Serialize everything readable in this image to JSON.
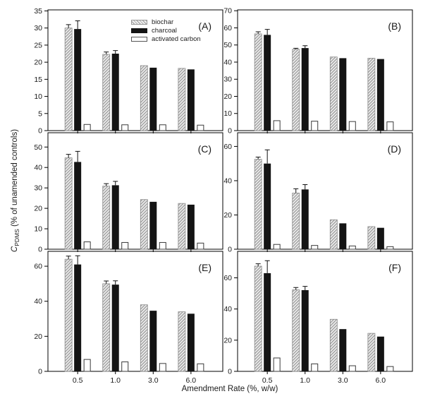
{
  "figure": {
    "xlabel": "Amendment Rate (%, w/w)",
    "ylabel": {
      "var": "C",
      "sub": "PDMS",
      "rest": " (% of unamended controls)"
    },
    "legend": [
      {
        "label": "biochar",
        "swatch": "hatched"
      },
      {
        "label": "charcoal",
        "swatch": "black"
      },
      {
        "label": "activated carbon",
        "swatch": "white"
      }
    ],
    "colors": {
      "charcoal_bar": "#141414",
      "hatch_line": "#9a9a9a",
      "hatch_bg": "#f0f0f0",
      "activated_carbon_bar": "#ffffff",
      "axis": "#000000",
      "panel_letter": "#555555"
    }
  },
  "chart_data": {
    "type": "bar",
    "grid": false,
    "legend_position": "inside panel A, top center",
    "categories": [
      "0.5",
      "1.0",
      "3.0",
      "6.0"
    ],
    "series_names": [
      "biochar",
      "charcoal",
      "activated carbon"
    ],
    "xlabel": "Amendment Rate (%, w/w)",
    "ylabel": "C_PDMS (% of unamended controls)",
    "error_bars": "upper error bars on biochar and charcoal at 0.5 and 1.0 rates",
    "panels": [
      {
        "label": "(A)",
        "ylim": [
          0,
          35.3
        ],
        "yticks": [
          0,
          5,
          10,
          15,
          20,
          25,
          30,
          35
        ],
        "series": [
          {
            "name": "biochar",
            "values": [
              30.0,
              22.3,
              19.0,
              18.2
            ],
            "errors": [
              1.0,
              0.7,
              0,
              0
            ]
          },
          {
            "name": "charcoal",
            "values": [
              29.7,
              22.5,
              18.4,
              17.9
            ],
            "errors": [
              2.4,
              0.9,
              0,
              0
            ]
          },
          {
            "name": "activated carbon",
            "values": [
              1.8,
              1.7,
              1.7,
              1.6
            ],
            "errors": [
              0,
              0,
              0,
              0
            ]
          }
        ]
      },
      {
        "label": "(B)",
        "ylim": [
          0,
          70.5
        ],
        "yticks": [
          0,
          10,
          20,
          30,
          40,
          50,
          60,
          70
        ],
        "series": [
          {
            "name": "biochar",
            "values": [
              56.5,
              47.5,
              43.0,
              42.3
            ],
            "errors": [
              1.2,
              0.6,
              0,
              0
            ]
          },
          {
            "name": "charcoal",
            "values": [
              55.9,
              48.2,
              42.3,
              41.8
            ],
            "errors": [
              3.2,
              1.4,
              0,
              0
            ]
          },
          {
            "name": "activated carbon",
            "values": [
              5.8,
              5.5,
              5.3,
              5.1
            ],
            "errors": [
              0,
              0,
              0,
              0
            ]
          }
        ]
      },
      {
        "label": "(C)",
        "ylim": [
          0,
          57
        ],
        "yticks": [
          0,
          10,
          20,
          30,
          40,
          50
        ],
        "series": [
          {
            "name": "biochar",
            "values": [
              44.7,
              30.9,
              24.3,
              22.4
            ],
            "errors": [
              1.7,
              1.2,
              0,
              0
            ]
          },
          {
            "name": "charcoal",
            "values": [
              42.7,
              31.3,
              23.2,
              21.8
            ],
            "errors": [
              5.2,
              1.9,
              0,
              0
            ]
          },
          {
            "name": "activated carbon",
            "values": [
              3.6,
              3.3,
              3.3,
              3.0
            ],
            "errors": [
              0,
              0,
              0,
              0
            ]
          }
        ]
      },
      {
        "label": "(D)",
        "ylim": [
          0,
          68
        ],
        "yticks": [
          0,
          20,
          40,
          60
        ],
        "series": [
          {
            "name": "biochar",
            "values": [
              52.5,
              32.8,
              17.2,
              13.2
            ],
            "errors": [
              1.3,
              2.5,
              0,
              0
            ]
          },
          {
            "name": "charcoal",
            "values": [
              50.0,
              34.9,
              15.1,
              12.5
            ],
            "errors": [
              8.0,
              2.8,
              0,
              0
            ]
          },
          {
            "name": "activated carbon",
            "values": [
              2.8,
              2.2,
              1.9,
              1.5
            ],
            "errors": [
              0,
              0,
              0,
              0
            ]
          }
        ]
      },
      {
        "label": "(E)",
        "ylim": [
          0,
          68.5
        ],
        "yticks": [
          0,
          20,
          40,
          60
        ],
        "series": [
          {
            "name": "biochar",
            "values": [
              64.0,
              50.0,
              38.0,
              34.0
            ],
            "errors": [
              1.8,
              1.6,
              0,
              0
            ]
          },
          {
            "name": "charcoal",
            "values": [
              61.0,
              49.5,
              34.6,
              32.9
            ],
            "errors": [
              5.0,
              2.2,
              0,
              0
            ]
          },
          {
            "name": "activated carbon",
            "values": [
              6.8,
              5.4,
              4.5,
              4.3
            ],
            "errors": [
              0,
              0,
              0,
              0
            ]
          }
        ]
      },
      {
        "label": "(F)",
        "ylim": [
          0,
          77
        ],
        "yticks": [
          0,
          20,
          40,
          60
        ],
        "series": [
          {
            "name": "biochar",
            "values": [
              67.5,
              52.3,
              33.4,
              24.4
            ],
            "errors": [
              1.5,
              1.5,
              0,
              0
            ]
          },
          {
            "name": "charcoal",
            "values": [
              63.0,
              52.1,
              27.1,
              22.3
            ],
            "errors": [
              8.0,
              2.4,
              0,
              0
            ]
          },
          {
            "name": "activated carbon",
            "values": [
              8.6,
              4.8,
              3.6,
              3.1
            ],
            "errors": [
              0,
              0,
              0,
              0
            ]
          }
        ]
      }
    ]
  }
}
